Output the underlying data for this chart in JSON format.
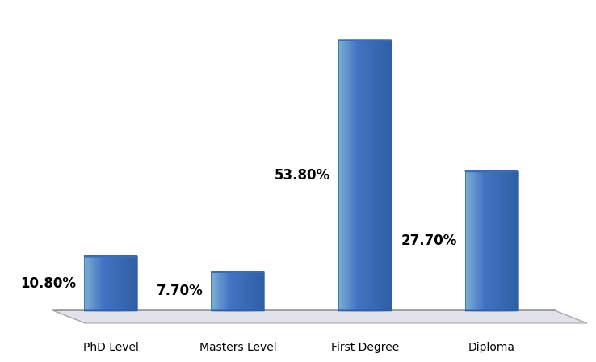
{
  "categories": [
    "PhD Level",
    "Masters Level",
    "First Degree",
    "Diploma"
  ],
  "values": [
    10.8,
    7.7,
    53.8,
    27.7
  ],
  "labels": [
    "10.80%",
    "7.70%",
    "53.80%",
    "27.70%"
  ],
  "bar_color_light": "#7bafd4",
  "bar_color_mid": "#4d86c0",
  "bar_color_body": "#4472c4",
  "bar_color_dark": "#2e5fa3",
  "bar_color_top": "#6b9fd0",
  "bar_color_top_dark": "#3a6db8",
  "background_color": "#ffffff",
  "ylim_max": 60,
  "label_fontsize": 12,
  "tick_fontsize": 10,
  "x_positions": [
    0,
    1,
    2,
    3
  ],
  "bar_width": 0.42
}
